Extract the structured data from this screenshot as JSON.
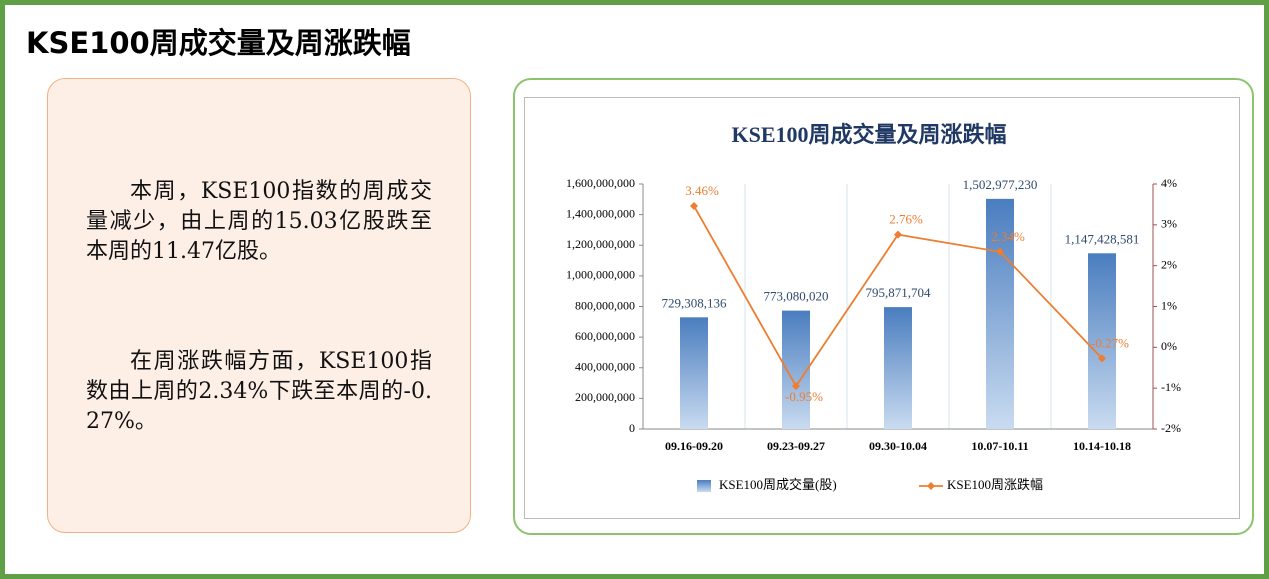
{
  "title": "KSE100周成交量及周涨跌幅",
  "paragraphs": [
    "本周，KSE100指数的周成交量减少，由上周的15.03亿股跌至本周的11.47亿股。",
    "在周涨跌幅方面，KSE100指数由上周的2.34%下跌至本周的-0.27%。"
  ],
  "chart_data": {
    "type": "bar",
    "title": "KSE100周成交量及周涨跌幅",
    "categories": [
      "09.16-09.20",
      "09.23-09.27",
      "09.30-10.04",
      "10.07-10.11",
      "10.14-10.18"
    ],
    "series": [
      {
        "name": "KSE100周成交量(股)",
        "type": "bar",
        "color": "#4a7dbf",
        "values": [
          729308136,
          773080020,
          795871704,
          1502977230,
          1147428581
        ],
        "value_labels": [
          "729,308,136",
          "773,080,020",
          "795,871,704",
          "1,502,977,230",
          "1,147,428,581"
        ]
      },
      {
        "name": "KSE100周涨跌幅",
        "type": "line",
        "axis": "y2",
        "color": "#ed7d31",
        "values": [
          3.46,
          -0.95,
          2.76,
          2.34,
          -0.27
        ],
        "value_labels": [
          "3.46%",
          "-0.95%",
          "2.76%",
          "2.34%",
          "-0.27%"
        ]
      }
    ],
    "ylim": [
      0,
      1600000000
    ],
    "yticks": [
      0,
      {
        "value": 200000000,
        "label": "200,000,000"
      },
      {
        "value": 400000000,
        "label": "400,000,000"
      },
      {
        "value": 600000000,
        "label": "600,000,000"
      },
      {
        "value": 800000000,
        "label": "800,000,000"
      },
      {
        "value": 1000000000,
        "label": "1,000,000,000"
      },
      {
        "value": 1200000000,
        "label": "1,200,000,000"
      },
      {
        "value": 1400000000,
        "label": "1,400,000,000"
      },
      {
        "value": 1600000000,
        "label": "1,600,000,000"
      }
    ],
    "y2lim": [
      -2,
      4
    ],
    "y2ticks": [
      {
        "value": -2,
        "label": "-2%"
      },
      {
        "value": -1,
        "label": "-1%"
      },
      {
        "value": 0,
        "label": "0%"
      },
      {
        "value": 1,
        "label": "1%"
      },
      {
        "value": 2,
        "label": "2%"
      },
      {
        "value": 3,
        "label": "3%"
      },
      {
        "value": 4,
        "label": "4%"
      }
    ],
    "legend": "bottom"
  }
}
